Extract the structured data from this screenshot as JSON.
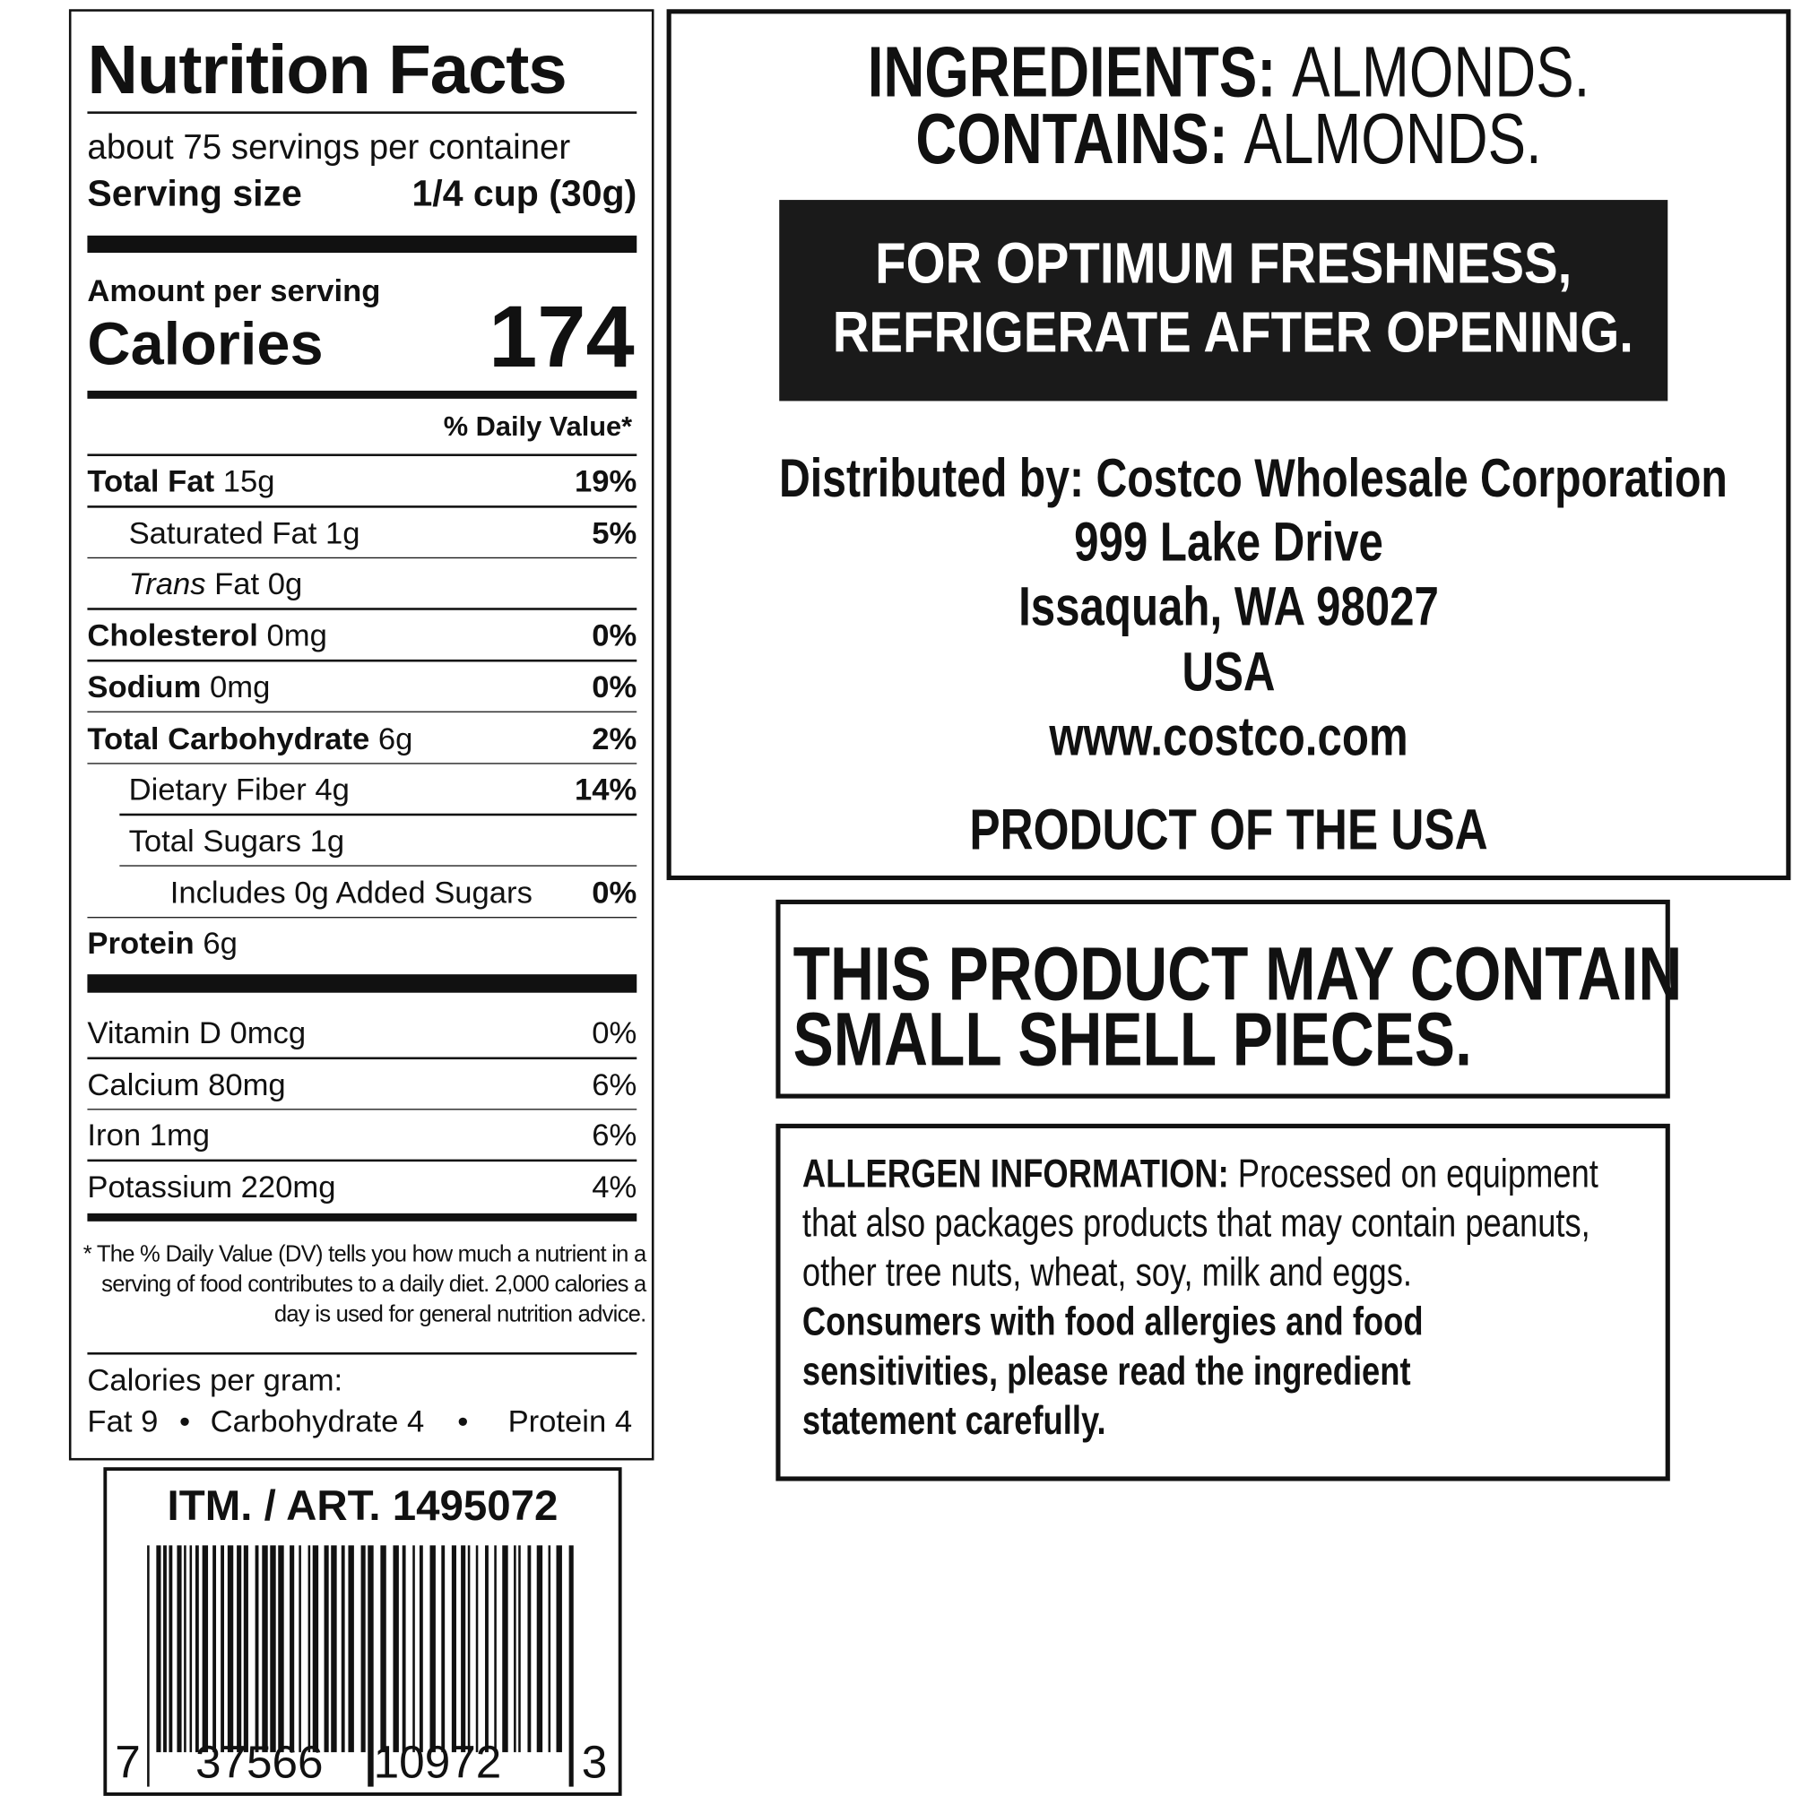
{
  "nutrition_facts": {
    "title": "Nutrition Facts",
    "servings_per_container": "about 75 servings per container",
    "serving_size_label": "Serving size",
    "serving_size": "1/4 cup (30g)",
    "amount_per_serving": "Amount per serving",
    "calories_label": "Calories",
    "calories": 174,
    "daily_value_header": "% Daily Value*",
    "nutrients": [
      {
        "name": "Total Fat",
        "amount": "15g",
        "daily_value": "19%"
      },
      {
        "name": "Saturated Fat",
        "amount": "1g",
        "daily_value": "5%"
      },
      {
        "name_prefix": "Trans",
        "name": "Fat",
        "amount": "0g"
      },
      {
        "name": "Cholesterol",
        "amount": "0mg",
        "daily_value": "0%"
      },
      {
        "name": "Sodium",
        "amount": "0mg",
        "daily_value": "0%"
      },
      {
        "name": "Total Carbohydrate",
        "amount": "6g",
        "daily_value": "2%"
      },
      {
        "name": "Dietary Fiber",
        "amount": "4g",
        "daily_value": "14%"
      },
      {
        "name": "Total Sugars",
        "amount": "1g"
      },
      {
        "name": "Includes 0g Added Sugars",
        "daily_value": "0%"
      },
      {
        "name": "Protein",
        "amount": "6g"
      }
    ],
    "vitamins": [
      {
        "name": "Vitamin D 0mcg",
        "daily_value": "0%"
      },
      {
        "name": "Calcium 80mg",
        "daily_value": "6%"
      },
      {
        "name": "Iron 1mg",
        "daily_value": "6%"
      },
      {
        "name": "Potassium 220mg",
        "daily_value": "4%"
      }
    ],
    "footnote": "* The % Daily Value (DV) tells you how much a nutrient in a serving of food contributes to a daily diet. 2,000 calories a day is used for general nutrition advice.",
    "calories_per_gram": {
      "label": "Calories per gram:",
      "items": [
        "Fat 9",
        "Carbohydrate 4",
        "Protein 4"
      ]
    }
  },
  "barcode": {
    "item_number": "ITM. / ART. 1495072",
    "digits": [
      "7",
      "37566",
      "10972",
      "3"
    ]
  },
  "ingredients": {
    "ingredients_label": "INGREDIENTS:",
    "ingredients": "ALMONDS.",
    "contains_label": "CONTAINS:",
    "contains": "ALMONDS."
  },
  "storage": [
    "FOR OPTIMUM FRESHNESS,",
    "REFRIGERATE AFTER OPENING."
  ],
  "distributor": {
    "lines": [
      "Distributed by: Costco Wholesale Corporation",
      "999 Lake Drive",
      "Issaquah, WA 98027",
      "USA",
      "www.costco.com"
    ],
    "origin": "PRODUCT OF THE USA"
  },
  "shell_warning": [
    "THIS PRODUCT MAY CONTAIN",
    "SMALL SHELL PIECES."
  ],
  "allergen": {
    "label": "ALLERGEN INFORMATION:",
    "text": "Processed on equipment that also packages products that may contain peanuts, other tree nuts, wheat, soy, milk and eggs.",
    "advice": "Consumers with food allergies and food sensitivities, please read the ingredient statement carefully."
  }
}
